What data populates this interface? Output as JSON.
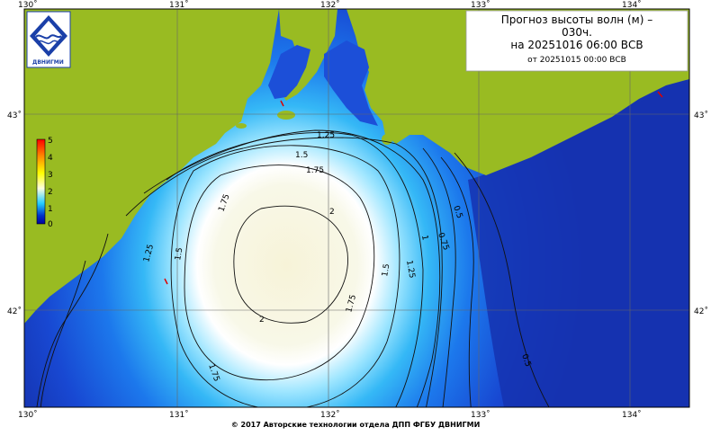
{
  "title": {
    "line1": "Прогноз высоты волн (м) –",
    "line2": "030ч.",
    "line3": "на 20251016 06:00 ВСВ",
    "line4": "от 20251015 00:00 ВСВ"
  },
  "logo": {
    "text": "ДВНИГМИ"
  },
  "copyright": "© 2017 Авторские технологии отдела ДПП ФГБУ ДВНИГМИ",
  "axes": {
    "lon_labels": [
      "130˚",
      "131˚",
      "132˚",
      "133˚",
      "134˚"
    ],
    "lat_labels": [
      "43˚",
      "42˚"
    ]
  },
  "colorbar": {
    "ticks": [
      "5",
      "4",
      "3",
      "2",
      "1",
      "0"
    ],
    "colors": [
      "#ff0000",
      "#ff8000",
      "#ffff00",
      "#ffffe0",
      "#00c0ff",
      "#0030c0",
      "#0000a0"
    ]
  },
  "contour_labels": [
    "1.25",
    "1.5",
    "1.75",
    "1.75",
    "2",
    "1.25",
    "1.5",
    "1.75",
    "2",
    "1.75",
    "1.5",
    "1.25",
    "1",
    "0.75",
    "0.5",
    "0.5"
  ],
  "colors": {
    "land": "#99bb22",
    "sea_deep": "#1533b0",
    "sea_mid": "#2b6fe8",
    "sea_light": "#55b8f6",
    "peak": "#f7f3d8",
    "grid": "#555555"
  }
}
